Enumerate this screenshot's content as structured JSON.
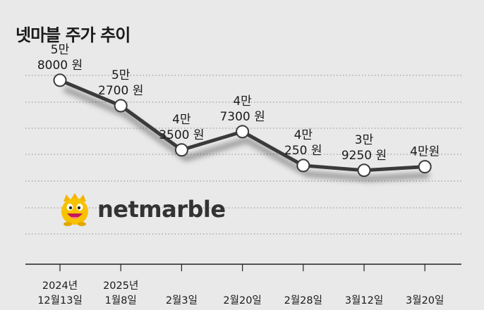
{
  "chart_data": {
    "type": "line",
    "title": "넷마블 주가 추이",
    "x": [
      "2024년\n12월13일",
      "2025년\n1월8일",
      "2월3일",
      "2월20일",
      "2월28일",
      "3월12일",
      "3월20일"
    ],
    "values": [
      58000,
      52700,
      43500,
      47300,
      40250,
      39250,
      40000
    ],
    "labels": [
      "5만\n8000 원",
      "5만\n2700 원",
      "4만\n3500 원",
      "4만\n7300 원",
      "4만\n250 원",
      "3만\n9250 원",
      "4만원"
    ],
    "ylim": [
      20000,
      64000
    ],
    "grid": true,
    "line_color": "#3a3a3a"
  },
  "brand": {
    "name": "netmarble"
  }
}
